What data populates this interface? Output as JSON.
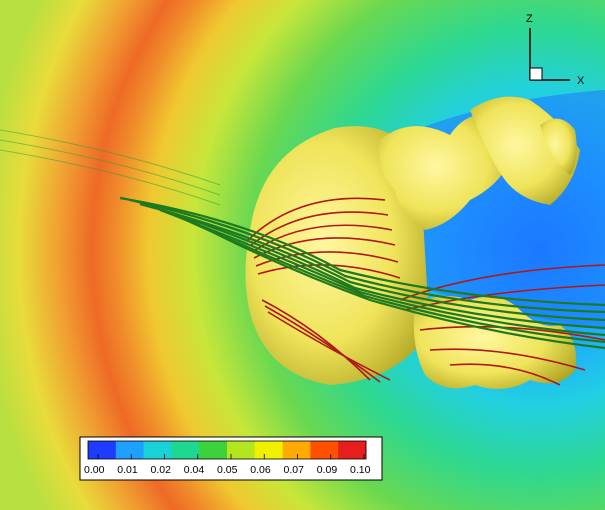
{
  "axes_triad": {
    "z_label": "Z",
    "x_label": "X"
  },
  "colorbar": {
    "tick_labels": [
      "0.00",
      "0.01",
      "0.02",
      "0.04",
      "0.05",
      "0.06",
      "0.07",
      "0.09",
      "0.10"
    ],
    "colors": [
      "#1e3cff",
      "#1ea0ff",
      "#18d2d8",
      "#1ed890",
      "#3cd23c",
      "#b4e61e",
      "#f0f000",
      "#ffaa00",
      "#ff5000",
      "#e61e1e"
    ]
  },
  "surface_colors": {
    "isosurface": "#f2ea5a",
    "field_lines_a": "#b01818",
    "field_lines_b": "#1e7a1e"
  }
}
